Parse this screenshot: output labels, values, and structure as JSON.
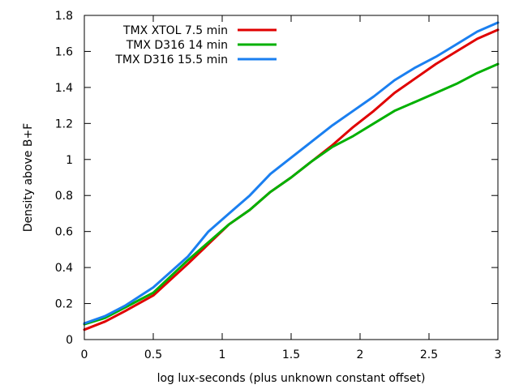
{
  "chart_data": {
    "type": "line",
    "title": "",
    "xlabel": "log lux-seconds (plus unknown constant offset)",
    "ylabel": "Density above B+F",
    "xlim": [
      0,
      3
    ],
    "ylim": [
      0,
      1.8
    ],
    "xticks": [
      "0",
      "0.5",
      "1",
      "1.5",
      "2",
      "2.5",
      "3"
    ],
    "xtick_values": [
      0,
      0.5,
      1,
      1.5,
      2,
      2.5,
      3
    ],
    "yticks": [
      "0",
      "0.2",
      "0.4",
      "0.6",
      "0.8",
      "1",
      "1.2",
      "1.4",
      "1.6",
      "1.8"
    ],
    "ytick_values": [
      0,
      0.2,
      0.4,
      0.6,
      0.8,
      1,
      1.2,
      1.4,
      1.6,
      1.8
    ],
    "grid": false,
    "legend_position": "top-left",
    "series": [
      {
        "name": "TMX XTOL 7.5 min",
        "color": "#e00000",
        "x": [
          0,
          0.15,
          0.3,
          0.5,
          0.75,
          0.9,
          1.05,
          1.2,
          1.35,
          1.5,
          1.65,
          1.8,
          1.95,
          2.1,
          2.25,
          2.4,
          2.55,
          2.7,
          2.85,
          3.0
        ],
        "y": [
          0.055,
          0.1,
          0.16,
          0.245,
          0.42,
          0.53,
          0.64,
          0.72,
          0.82,
          0.9,
          0.99,
          1.08,
          1.18,
          1.27,
          1.37,
          1.45,
          1.53,
          1.6,
          1.67,
          1.72
        ]
      },
      {
        "name": "TMX D316 14 min",
        "color": "#00b000",
        "x": [
          0,
          0.15,
          0.3,
          0.5,
          0.75,
          0.9,
          1.05,
          1.2,
          1.35,
          1.5,
          1.65,
          1.8,
          1.95,
          2.1,
          2.25,
          2.4,
          2.55,
          2.7,
          2.85,
          3.0
        ],
        "y": [
          0.085,
          0.12,
          0.18,
          0.26,
          0.44,
          0.54,
          0.64,
          0.72,
          0.82,
          0.9,
          0.99,
          1.07,
          1.13,
          1.2,
          1.27,
          1.32,
          1.37,
          1.42,
          1.48,
          1.53
        ]
      },
      {
        "name": "TMX D316 15.5 min",
        "color": "#1a7ff0",
        "x": [
          0,
          0.15,
          0.3,
          0.5,
          0.75,
          0.9,
          1.05,
          1.2,
          1.35,
          1.5,
          1.65,
          1.8,
          1.95,
          2.1,
          2.25,
          2.4,
          2.55,
          2.7,
          2.85,
          3.0
        ],
        "y": [
          0.09,
          0.13,
          0.19,
          0.29,
          0.46,
          0.6,
          0.7,
          0.8,
          0.92,
          1.01,
          1.1,
          1.19,
          1.27,
          1.35,
          1.44,
          1.51,
          1.57,
          1.64,
          1.71,
          1.76
        ]
      }
    ]
  }
}
